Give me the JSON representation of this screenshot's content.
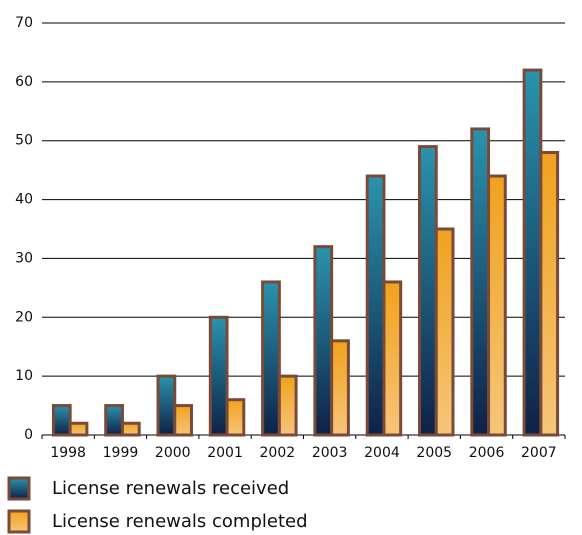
{
  "chart_data": {
    "type": "bar",
    "categories": [
      "1998",
      "1999",
      "2000",
      "2001",
      "2002",
      "2003",
      "2004",
      "2005",
      "2006",
      "2007"
    ],
    "series": [
      {
        "name": "License renewals received",
        "color": "#2a93ad",
        "values": [
          5,
          5,
          10,
          20,
          26,
          32,
          44,
          49,
          52,
          62
        ]
      },
      {
        "name": "License renewals completed",
        "color": "#f0a21e",
        "values": [
          2,
          2,
          5,
          6,
          10,
          16,
          26,
          35,
          44,
          48
        ]
      }
    ],
    "ylim": [
      0,
      70
    ],
    "yticks": [
      0,
      10,
      20,
      30,
      40,
      50,
      60,
      70
    ],
    "grid": true,
    "legend": "bottom"
  }
}
